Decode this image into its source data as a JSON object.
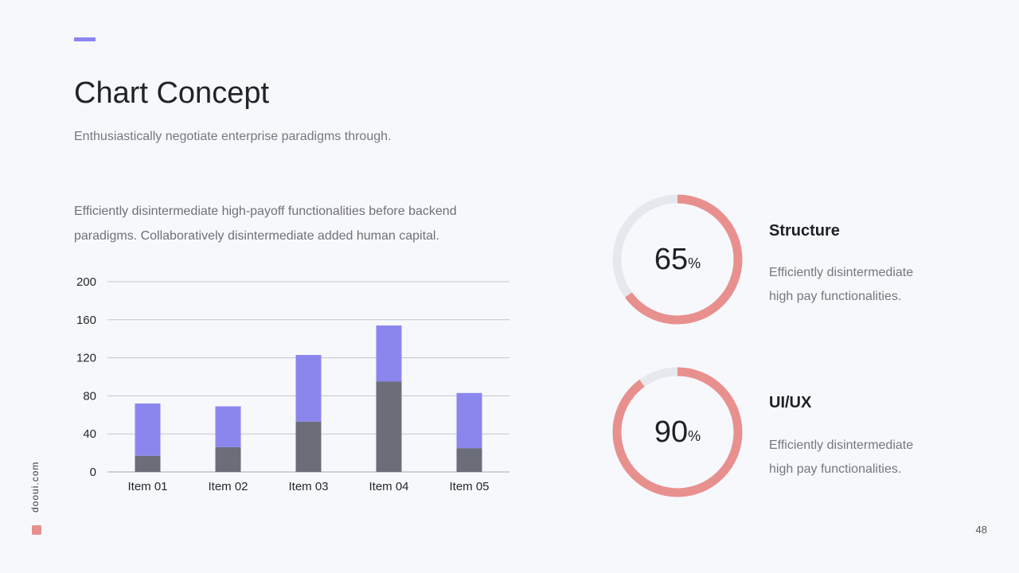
{
  "slide": {
    "title": "Chart Concept",
    "subtitle": "Enthusiastically  negotiate  enterprise paradigms through.",
    "description": "Efficiently disintermediate  high-payoff functionalities before backend paradigms. Collaboratively  disintermediate  added human  capital.",
    "brand": "dooui.com",
    "page_number": "48"
  },
  "colors": {
    "accent": "#8b86ee",
    "series_bottom": "#6b6e78",
    "series_top": "#8b86ee",
    "ring": "#e8908e",
    "ring_track": "#e7e8ee",
    "brand_square": "#e8908e"
  },
  "chart_data": {
    "type": "bar",
    "stacked": true,
    "categories": [
      "Item 01",
      "Item 02",
      "Item 03",
      "Item 04",
      "Item 05"
    ],
    "series": [
      {
        "values": [
          17,
          26,
          53,
          95,
          25
        ]
      },
      {
        "values": [
          55,
          43,
          70,
          59,
          58
        ]
      }
    ],
    "ylim": [
      0,
      200
    ],
    "yticks": [
      0,
      40,
      80,
      120,
      160,
      200
    ],
    "grid": true,
    "legend": "none"
  },
  "stats": [
    {
      "value": "65",
      "unit": "%",
      "percent": 65,
      "title": "Structure",
      "desc_line1": "Efficiently disintermediate",
      "desc_line2": "high pay functionalities."
    },
    {
      "value": "90",
      "unit": "%",
      "percent": 90,
      "title": "UI/UX",
      "desc_line1": "Efficiently disintermediate",
      "desc_line2": "high pay functionalities."
    }
  ]
}
